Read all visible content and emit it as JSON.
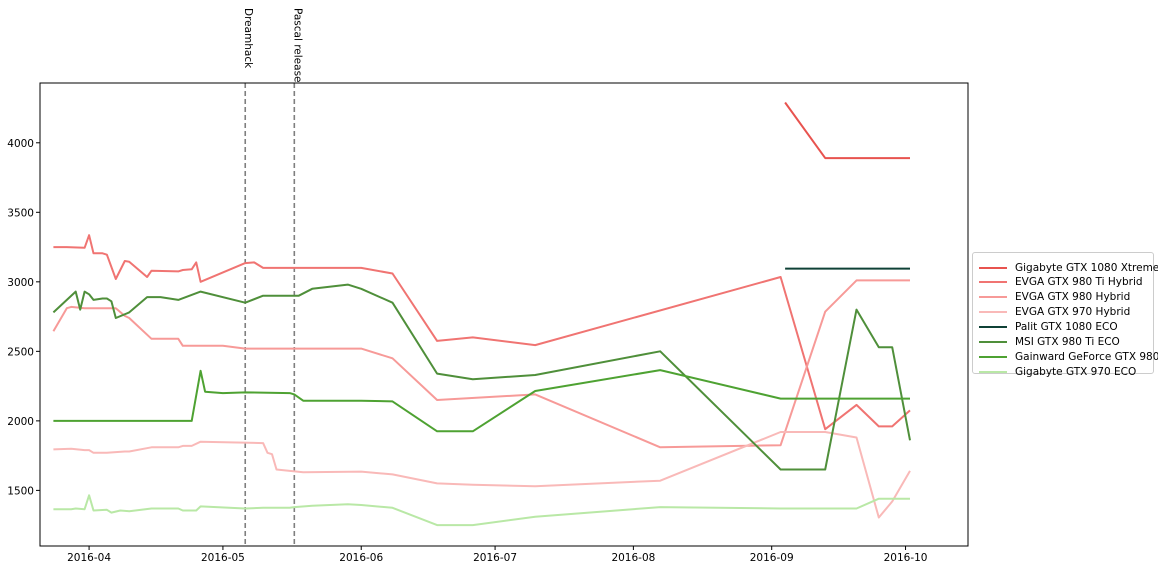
{
  "chart_data": {
    "type": "line",
    "title": "",
    "xlabel": "",
    "ylabel": "",
    "xlim": [
      "2016-03-21",
      "2016-10-15"
    ],
    "ylim": [
      1100,
      4430
    ],
    "x_ticks": [
      "2016-04",
      "2016-05",
      "2016-06",
      "2016-07",
      "2016-08",
      "2016-09",
      "2016-10"
    ],
    "y_ticks": [
      1500,
      2000,
      2500,
      3000,
      3500,
      4000
    ],
    "grid": false,
    "legend_position": "center-right outside",
    "annotations": [
      {
        "label": "Dreamhack",
        "x": "2016-05-06",
        "style": "dashed"
      },
      {
        "label": "Pascal release",
        "x": "2016-05-17",
        "style": "dashed"
      }
    ],
    "series": [
      {
        "name": "Gigabyte GTX 1080 Xtreme",
        "color": "#e8534f",
        "x": [
          "2016-09-04",
          "2016-09-13",
          "2016-10-02"
        ],
        "y": [
          4290,
          3890,
          3890
        ]
      },
      {
        "name": "EVGA GTX 980 Ti Hybrid",
        "color": "#f07472",
        "x": [
          "2016-03-24",
          "2016-03-27",
          "2016-03-31",
          "2016-04-01",
          "2016-04-02",
          "2016-04-04",
          "2016-04-05",
          "2016-04-07",
          "2016-04-09",
          "2016-04-10",
          "2016-04-14",
          "2016-04-15",
          "2016-04-21",
          "2016-04-22",
          "2016-04-24",
          "2016-04-25",
          "2016-04-26",
          "2016-05-06",
          "2016-05-08",
          "2016-05-10",
          "2016-06-01",
          "2016-06-08",
          "2016-06-18",
          "2016-06-26",
          "2016-07-10",
          "2016-09-03",
          "2016-09-13",
          "2016-09-20",
          "2016-09-25",
          "2016-09-28",
          "2016-10-02"
        ],
        "y": [
          3250,
          3250,
          3245,
          3335,
          3205,
          3205,
          3195,
          3020,
          3150,
          3145,
          3035,
          3080,
          3075,
          3085,
          3090,
          3140,
          3000,
          3135,
          3140,
          3100,
          3100,
          3060,
          2575,
          2600,
          2545,
          3035,
          1940,
          2115,
          1960,
          1960,
          2075
        ]
      },
      {
        "name": "EVGA GTX 980 Hybrid",
        "color": "#f79a98",
        "x": [
          "2016-03-24",
          "2016-03-27",
          "2016-03-28",
          "2016-03-31",
          "2016-04-01",
          "2016-04-07",
          "2016-04-09",
          "2016-04-10",
          "2016-04-15",
          "2016-04-21",
          "2016-04-22",
          "2016-05-01",
          "2016-05-06",
          "2016-06-01",
          "2016-06-08",
          "2016-06-18",
          "2016-07-10",
          "2016-08-07",
          "2016-09-03",
          "2016-09-13",
          "2016-09-20",
          "2016-10-02"
        ],
        "y": [
          2645,
          2810,
          2820,
          2810,
          2810,
          2810,
          2755,
          2740,
          2590,
          2590,
          2540,
          2540,
          2520,
          2520,
          2450,
          2150,
          2190,
          1810,
          1825,
          2785,
          3010,
          3010
        ]
      },
      {
        "name": "EVGA GTX 970 Hybrid",
        "color": "#f9b9b8",
        "x": [
          "2016-03-24",
          "2016-03-28",
          "2016-03-31",
          "2016-04-01",
          "2016-04-02",
          "2016-04-05",
          "2016-04-07",
          "2016-04-09",
          "2016-04-10",
          "2016-04-15",
          "2016-04-21",
          "2016-04-22",
          "2016-04-24",
          "2016-04-26",
          "2016-05-10",
          "2016-05-11",
          "2016-05-12",
          "2016-05-13",
          "2016-05-16",
          "2016-05-19",
          "2016-06-01",
          "2016-06-08",
          "2016-06-18",
          "2016-06-26",
          "2016-07-10",
          "2016-08-07",
          "2016-09-03",
          "2016-09-13",
          "2016-09-20",
          "2016-09-25",
          "2016-09-28",
          "2016-10-02"
        ],
        "y": [
          1795,
          1800,
          1790,
          1790,
          1770,
          1770,
          1775,
          1780,
          1780,
          1810,
          1810,
          1820,
          1820,
          1850,
          1840,
          1770,
          1760,
          1650,
          1640,
          1630,
          1635,
          1615,
          1550,
          1540,
          1530,
          1570,
          1920,
          1920,
          1880,
          1305,
          1420,
          1640
        ]
      },
      {
        "name": "Palit GTX 1080 ECO",
        "color": "#0f4136",
        "x": [
          "2016-09-04",
          "2016-10-02"
        ],
        "y": [
          3095,
          3095
        ]
      },
      {
        "name": "MSI GTX 980 Ti ECO",
        "color": "#4f8f3a",
        "x": [
          "2016-03-24",
          "2016-03-29",
          "2016-03-30",
          "2016-03-31",
          "2016-04-01",
          "2016-04-02",
          "2016-04-04",
          "2016-04-05",
          "2016-04-06",
          "2016-04-07",
          "2016-04-10",
          "2016-04-14",
          "2016-04-17",
          "2016-04-21",
          "2016-04-26",
          "2016-05-06",
          "2016-05-10",
          "2016-05-16",
          "2016-05-18",
          "2016-05-21",
          "2016-05-29",
          "2016-06-01",
          "2016-06-08",
          "2016-06-18",
          "2016-06-26",
          "2016-07-10",
          "2016-08-07",
          "2016-09-03",
          "2016-09-13",
          "2016-09-20",
          "2016-09-25",
          "2016-09-28",
          "2016-10-02"
        ],
        "y": [
          2780,
          2930,
          2800,
          2930,
          2910,
          2870,
          2880,
          2880,
          2860,
          2740,
          2780,
          2890,
          2890,
          2870,
          2930,
          2850,
          2900,
          2900,
          2900,
          2950,
          2980,
          2950,
          2850,
          2340,
          2300,
          2330,
          2500,
          1650,
          1650,
          2800,
          2530,
          2530,
          1860
        ]
      },
      {
        "name": "Gainward GeForce GTX 980",
        "color": "#4ea232",
        "x": [
          "2016-03-24",
          "2016-04-24",
          "2016-04-26",
          "2016-04-27",
          "2016-05-01",
          "2016-05-06",
          "2016-05-16",
          "2016-05-17",
          "2016-05-19",
          "2016-06-01",
          "2016-06-08",
          "2016-06-18",
          "2016-06-26",
          "2016-07-10",
          "2016-08-07",
          "2016-09-03",
          "2016-09-13",
          "2016-10-02"
        ],
        "y": [
          2000,
          2000,
          2360,
          2210,
          2200,
          2205,
          2200,
          2190,
          2145,
          2145,
          2140,
          1925,
          1925,
          2215,
          2365,
          2160,
          2160,
          2160
        ]
      },
      {
        "name": "Gigabyte GTX 970 ECO",
        "color": "#b9e8a6",
        "x": [
          "2016-03-24",
          "2016-03-28",
          "2016-03-29",
          "2016-03-31",
          "2016-04-01",
          "2016-04-02",
          "2016-04-05",
          "2016-04-06",
          "2016-04-08",
          "2016-04-10",
          "2016-04-15",
          "2016-04-21",
          "2016-04-22",
          "2016-04-25",
          "2016-04-26",
          "2016-05-06",
          "2016-05-10",
          "2016-05-16",
          "2016-05-17",
          "2016-05-21",
          "2016-05-29",
          "2016-06-01",
          "2016-06-08",
          "2016-06-18",
          "2016-06-26",
          "2016-07-10",
          "2016-08-07",
          "2016-09-03",
          "2016-09-13",
          "2016-09-20",
          "2016-09-25",
          "2016-10-02"
        ],
        "y": [
          1365,
          1365,
          1370,
          1365,
          1465,
          1355,
          1360,
          1340,
          1355,
          1350,
          1370,
          1370,
          1355,
          1355,
          1385,
          1370,
          1375,
          1375,
          1380,
          1390,
          1400,
          1395,
          1375,
          1250,
          1250,
          1310,
          1380,
          1370,
          1370,
          1370,
          1440,
          1440
        ]
      }
    ]
  }
}
